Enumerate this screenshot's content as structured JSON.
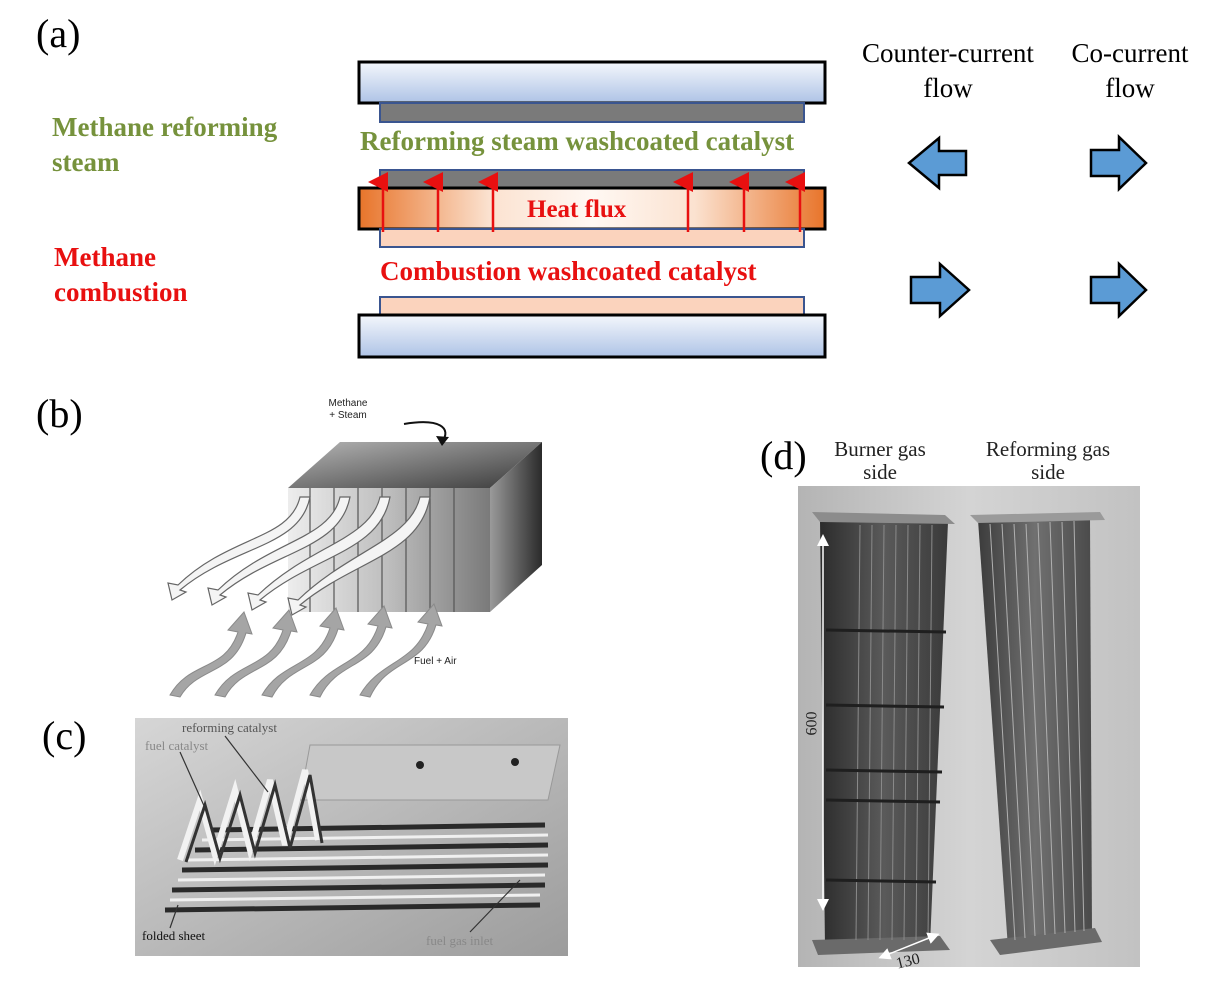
{
  "panel_a": {
    "label": "(a)",
    "reforming_side_label": [
      "Methane reforming",
      "steam"
    ],
    "combustion_side_label": [
      "Methane",
      "combustion"
    ],
    "reforming_catalyst_label": "Reforming steam washcoated catalyst",
    "heat_flux_label": "Heat flux",
    "combustion_catalyst_label": "Combustion washcoated catalyst",
    "counter_current_header": [
      "Counter-current",
      "flow"
    ],
    "co_current_header": [
      "Co-current",
      "flow"
    ],
    "colors": {
      "reforming_green": "#76923c",
      "combustion_red": "#e81010",
      "arrow_blue": "#5b9bd5",
      "heat_orange": "#e87a2e"
    }
  },
  "panel_b": {
    "label": "(b)",
    "inlet_label": [
      "Methane",
      "+ Steam"
    ],
    "fuel_label": "Fuel + Air"
  },
  "panel_c": {
    "label": "(c)",
    "reforming_catalyst": "reforming catalyst",
    "fuel_catalyst": "fuel catalyst",
    "folded_sheet": "folded sheet",
    "fuel_gas_inlet": "fuel gas inlet"
  },
  "panel_d": {
    "label": "(d)",
    "burner_side": [
      "Burner gas",
      "side"
    ],
    "reforming_side": [
      "Reforming gas",
      "side"
    ],
    "height_dim": "600",
    "width_dim": "130"
  }
}
